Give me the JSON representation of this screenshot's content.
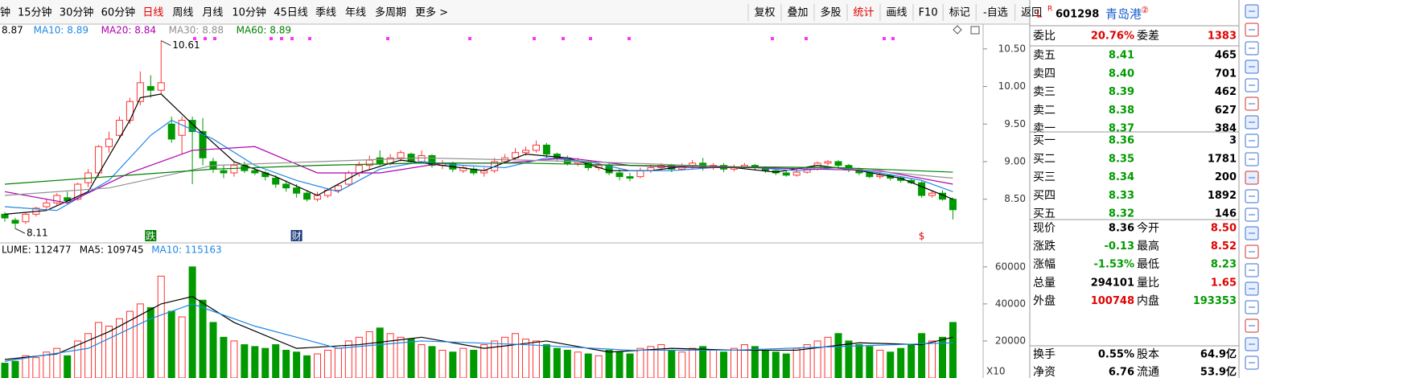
{
  "toolbar": {
    "periods": [
      "钟",
      "15分钟",
      "30分钟",
      "60分钟",
      "日线",
      "周线",
      "月线",
      "10分钟",
      "45日线",
      "季线",
      "年线",
      "多周期",
      "更多 >"
    ],
    "buttons": [
      "复权",
      "叠加",
      "多股",
      "统计",
      "画线",
      "F10",
      "标记",
      "-自选",
      "返回"
    ]
  },
  "chart_data": [
    {
      "type": "candlestick",
      "up_color": "#ff3232",
      "down_color": "#009a00",
      "ylim": [
        7.94,
        10.83
      ],
      "yticks": [
        {
          "value": 10.5,
          "label": "10.50"
        },
        {
          "value": 10,
          "label": "10.00"
        },
        {
          "value": 9.5,
          "label": "9.50"
        },
        {
          "value": 9,
          "label": "9.00"
        },
        {
          "value": 8.5,
          "label": "8.50"
        }
      ],
      "open": [
        8.3,
        8.22,
        8.2,
        8.3,
        8.4,
        8.45,
        8.52,
        8.5,
        8.72,
        8.85,
        9.2,
        9.35,
        9.55,
        9.8,
        10.0,
        9.95,
        9.5,
        9.35,
        9.55,
        9.4,
        9.0,
        8.88,
        8.85,
        8.95,
        8.88,
        8.85,
        8.78,
        8.7,
        8.65,
        8.58,
        8.5,
        8.55,
        8.62,
        8.7,
        8.85,
        8.95,
        9.05,
        8.98,
        9.05,
        9.1,
        9.0,
        9.08,
        8.95,
        8.98,
        8.88,
        8.9,
        8.85,
        8.88,
        9.0,
        9.05,
        9.12,
        9.15,
        9.22,
        9.1,
        9.05,
        8.98,
        9.0,
        8.92,
        8.95,
        8.85,
        8.8,
        8.8,
        8.88,
        8.92,
        8.95,
        8.9,
        8.94,
        8.98,
        8.92,
        8.95,
        8.9,
        8.93,
        8.95,
        8.92,
        8.88,
        8.85,
        8.82,
        8.86,
        8.9,
        8.98,
        9.0,
        8.95,
        8.9,
        8.85,
        8.8,
        8.82,
        8.78,
        8.75,
        8.72,
        8.55,
        8.58,
        8.5
      ],
      "close": [
        8.25,
        8.18,
        8.3,
        8.38,
        8.45,
        8.55,
        8.48,
        8.7,
        8.85,
        9.2,
        9.3,
        9.55,
        9.8,
        10.05,
        9.95,
        10.05,
        9.3,
        9.55,
        9.4,
        9.05,
        8.9,
        8.85,
        8.95,
        8.88,
        8.85,
        8.8,
        8.7,
        8.65,
        8.58,
        8.5,
        8.55,
        8.62,
        8.68,
        8.85,
        8.95,
        9.02,
        8.98,
        9.05,
        9.12,
        9.0,
        9.08,
        8.95,
        8.98,
        8.9,
        8.92,
        8.85,
        8.88,
        9.0,
        9.05,
        9.12,
        9.15,
        9.22,
        9.1,
        9.05,
        8.98,
        9.0,
        8.92,
        8.95,
        8.85,
        8.8,
        8.78,
        8.88,
        8.92,
        8.95,
        8.9,
        8.94,
        8.98,
        8.92,
        8.95,
        8.9,
        8.93,
        8.95,
        8.92,
        8.88,
        8.85,
        8.82,
        8.86,
        8.9,
        8.98,
        9.0,
        8.95,
        8.9,
        8.85,
        8.8,
        8.82,
        8.78,
        8.75,
        8.72,
        8.55,
        8.58,
        8.5,
        8.36
      ],
      "high": [
        8.33,
        8.25,
        8.33,
        8.4,
        8.5,
        8.58,
        8.6,
        8.72,
        8.9,
        9.22,
        9.4,
        9.6,
        9.85,
        10.2,
        10.15,
        10.61,
        9.6,
        9.6,
        9.6,
        9.58,
        9.05,
        8.95,
        9.0,
        9.0,
        8.92,
        8.88,
        8.82,
        8.75,
        8.7,
        8.62,
        8.6,
        8.65,
        8.7,
        8.88,
        9.0,
        9.08,
        9.15,
        9.1,
        9.15,
        9.12,
        9.15,
        9.1,
        9.02,
        9.0,
        8.95,
        8.93,
        8.92,
        9.05,
        9.1,
        9.18,
        9.2,
        9.28,
        9.25,
        9.12,
        9.08,
        9.05,
        9.02,
        9.0,
        8.98,
        8.9,
        8.85,
        8.92,
        8.96,
        8.98,
        8.97,
        8.98,
        9.02,
        9.05,
        8.98,
        8.98,
        8.96,
        8.98,
        8.97,
        8.94,
        8.9,
        8.88,
        8.9,
        8.92,
        9.0,
        9.02,
        9.02,
        8.97,
        8.92,
        8.88,
        8.86,
        8.84,
        8.8,
        8.78,
        8.74,
        8.62,
        8.62,
        8.52
      ],
      "low": [
        8.2,
        8.11,
        8.17,
        8.27,
        8.36,
        8.42,
        8.44,
        8.48,
        8.66,
        8.8,
        9.12,
        9.3,
        9.5,
        9.75,
        9.85,
        9.9,
        9.25,
        9.1,
        8.7,
        8.95,
        8.85,
        8.78,
        8.8,
        8.85,
        8.82,
        8.75,
        8.65,
        8.6,
        8.52,
        8.47,
        8.47,
        8.52,
        8.58,
        8.68,
        8.8,
        8.9,
        8.95,
        8.95,
        9.0,
        8.97,
        8.98,
        8.92,
        8.9,
        8.86,
        8.85,
        8.82,
        8.8,
        8.85,
        8.98,
        9.02,
        9.08,
        9.12,
        9.05,
        9.0,
        8.95,
        8.94,
        8.88,
        8.88,
        8.82,
        8.75,
        8.74,
        8.78,
        8.85,
        8.88,
        8.86,
        8.88,
        8.9,
        8.88,
        8.89,
        8.86,
        8.87,
        8.9,
        8.88,
        8.85,
        8.82,
        8.8,
        8.8,
        8.84,
        8.88,
        8.95,
        8.92,
        8.86,
        8.82,
        8.78,
        8.77,
        8.75,
        8.72,
        8.7,
        8.52,
        8.52,
        8.48,
        8.23
      ],
      "series": [
        {
          "name": "8.87",
          "color": "#000000",
          "x": [
            0,
            4,
            8,
            12,
            13,
            15,
            18,
            22,
            26,
            30,
            34,
            38,
            42,
            46,
            50,
            54,
            58,
            62,
            66,
            70,
            74,
            78,
            82,
            86,
            91
          ],
          "values": [
            8.3,
            8.35,
            8.6,
            9.55,
            9.85,
            9.9,
            9.5,
            9.0,
            8.8,
            8.55,
            8.85,
            9.02,
            8.95,
            8.88,
            9.1,
            9.05,
            8.88,
            8.88,
            8.95,
            8.92,
            8.86,
            8.95,
            8.88,
            8.78,
            8.5
          ]
        },
        {
          "name": "MA10: 8.89",
          "color": "#1e88e5",
          "x": [
            0,
            5,
            10,
            14,
            16,
            20,
            24,
            28,
            32,
            36,
            40,
            44,
            48,
            52,
            56,
            60,
            64,
            68,
            72,
            76,
            80,
            84,
            88,
            91
          ],
          "values": [
            8.4,
            8.35,
            8.75,
            9.35,
            9.55,
            9.3,
            8.95,
            8.75,
            8.6,
            8.9,
            9.0,
            8.95,
            8.92,
            9.05,
            9.0,
            8.88,
            8.88,
            8.92,
            8.92,
            8.88,
            8.92,
            8.85,
            8.75,
            8.6
          ]
        },
        {
          "name": "MA20: 8.84",
          "color": "#b000b0",
          "x": [
            0,
            6,
            12,
            18,
            24,
            30,
            36,
            42,
            48,
            54,
            60,
            66,
            72,
            78,
            84,
            91
          ],
          "values": [
            8.6,
            8.45,
            8.85,
            9.15,
            9.2,
            8.85,
            8.85,
            8.98,
            8.98,
            9.05,
            8.95,
            8.92,
            8.92,
            8.9,
            8.88,
            8.7
          ]
        },
        {
          "name": "MA30: 8.88",
          "color": "#909090",
          "x": [
            0,
            10,
            20,
            30,
            40,
            50,
            60,
            70,
            80,
            91
          ],
          "values": [
            8.55,
            8.65,
            8.95,
            9.0,
            9.05,
            9.02,
            8.98,
            8.93,
            8.92,
            8.78
          ]
        },
        {
          "name": "MA60: 8.89",
          "color": "#008000",
          "x": [
            0,
            10,
            20,
            30,
            40,
            50,
            60,
            70,
            80,
            91
          ],
          "values": [
            8.7,
            8.8,
            8.9,
            8.95,
            8.98,
            8.98,
            8.95,
            8.93,
            8.92,
            8.86
          ]
        }
      ],
      "annotations": [
        {
          "text": "10.61",
          "x": 15,
          "y": 10.61
        },
        {
          "text": "8.11",
          "x": 1,
          "y": 8.11
        }
      ],
      "events": [
        {
          "text": "跌",
          "x": 14,
          "color": "#008000"
        },
        {
          "text": "财",
          "x": 28,
          "color": "#1a3a7a"
        },
        {
          "text": "$",
          "x": 88,
          "color": "#e00000"
        }
      ]
    },
    {
      "type": "bar",
      "ylim": [
        0,
        66000
      ],
      "yticks": [
        20000,
        40000,
        60000
      ],
      "axis_label": "X10",
      "values": [
        8000,
        9000,
        12000,
        11000,
        14000,
        16000,
        12000,
        20000,
        24000,
        30000,
        28000,
        32000,
        36000,
        40000,
        38000,
        55000,
        36000,
        33000,
        60000,
        42000,
        30000,
        22000,
        20000,
        18000,
        17000,
        16000,
        18000,
        15000,
        14000,
        12000,
        13000,
        15000,
        16000,
        20000,
        22000,
        25000,
        27000,
        24000,
        22000,
        21000,
        18000,
        17000,
        15000,
        14000,
        16000,
        15000,
        18000,
        20000,
        22000,
        24000,
        21000,
        20000,
        18000,
        16000,
        15000,
        14000,
        13000,
        12000,
        15000,
        14000,
        13000,
        16000,
        17000,
        18000,
        15000,
        14000,
        16000,
        17000,
        15000,
        14000,
        16000,
        18000,
        17000,
        15000,
        14000,
        13000,
        16000,
        18000,
        20000,
        22000,
        24000,
        20000,
        18000,
        17000,
        15000,
        14000,
        16000,
        18000,
        24000,
        20000,
        22000,
        30000
      ],
      "legend": "LUME: 112477",
      "series": [
        {
          "name": "MA5: 109745",
          "color": "#000000",
          "x": [
            0,
            5,
            10,
            15,
            18,
            22,
            28,
            34,
            40,
            46,
            52,
            58,
            64,
            70,
            76,
            82,
            88,
            91
          ],
          "values": [
            10000,
            13000,
            25000,
            40000,
            44000,
            30000,
            16000,
            18000,
            22000,
            16000,
            20000,
            14000,
            16000,
            15000,
            15000,
            19000,
            18000,
            22000
          ]
        },
        {
          "name": "MA10: 115163",
          "color": "#1e88e5",
          "x": [
            0,
            8,
            14,
            18,
            24,
            32,
            40,
            50,
            60,
            70,
            80,
            91
          ],
          "values": [
            9000,
            16000,
            32000,
            40000,
            28000,
            16000,
            20000,
            18000,
            15000,
            15000,
            17000,
            19000
          ]
        }
      ]
    }
  ],
  "quote": {
    "prefix": "L",
    "badge": "R",
    "code": "601298",
    "name": "青岛港",
    "mark": "②",
    "ratio": {
      "cells": [
        "委比",
        "20.76%",
        "委差",
        "1383"
      ],
      "colors": [
        "#e00000",
        "#e00000"
      ]
    },
    "asks": [
      {
        "label": "卖五",
        "price": "8.41",
        "size": "465"
      },
      {
        "label": "卖四",
        "price": "8.40",
        "size": "701"
      },
      {
        "label": "卖三",
        "price": "8.39",
        "size": "462"
      },
      {
        "label": "卖二",
        "price": "8.38",
        "size": "627"
      },
      {
        "label": "卖一",
        "price": "8.37",
        "size": "384"
      }
    ],
    "bids": [
      {
        "label": "买一",
        "price": "8.36",
        "size": "3"
      },
      {
        "label": "买二",
        "price": "8.35",
        "size": "1781"
      },
      {
        "label": "买三",
        "price": "8.34",
        "size": "200"
      },
      {
        "label": "买四",
        "price": "8.33",
        "size": "1892"
      },
      {
        "label": "买五",
        "price": "8.32",
        "size": "146"
      }
    ],
    "price_color": "#009a00",
    "stats": [
      {
        "cells": [
          "现价",
          "8.36",
          "今开",
          "8.50"
        ],
        "colors": [
          "#000000",
          "#e00000"
        ]
      },
      {
        "cells": [
          "涨跌",
          "-0.13",
          "最高",
          "8.52"
        ],
        "colors": [
          "#009a00",
          "#e00000"
        ]
      },
      {
        "cells": [
          "涨幅",
          "-1.53%",
          "最低",
          "8.23"
        ],
        "colors": [
          "#009a00",
          "#009a00"
        ]
      },
      {
        "cells": [
          "总量",
          "294101",
          "量比",
          "1.65"
        ],
        "colors": [
          "#000000",
          "#e00000"
        ]
      },
      {
        "cells": [
          "外盘",
          "100748",
          "内盘",
          "193353"
        ],
        "colors": [
          "#e00000",
          "#009a00"
        ]
      },
      {
        "cells": [
          "换手",
          "0.55%",
          "股本",
          "64.9亿"
        ],
        "colors": [
          "#000000",
          "#000000"
        ]
      },
      {
        "cells": [
          "净资",
          "6.76",
          "流通",
          "53.9亿"
        ],
        "colors": [
          "#000000",
          "#000000"
        ]
      }
    ]
  }
}
